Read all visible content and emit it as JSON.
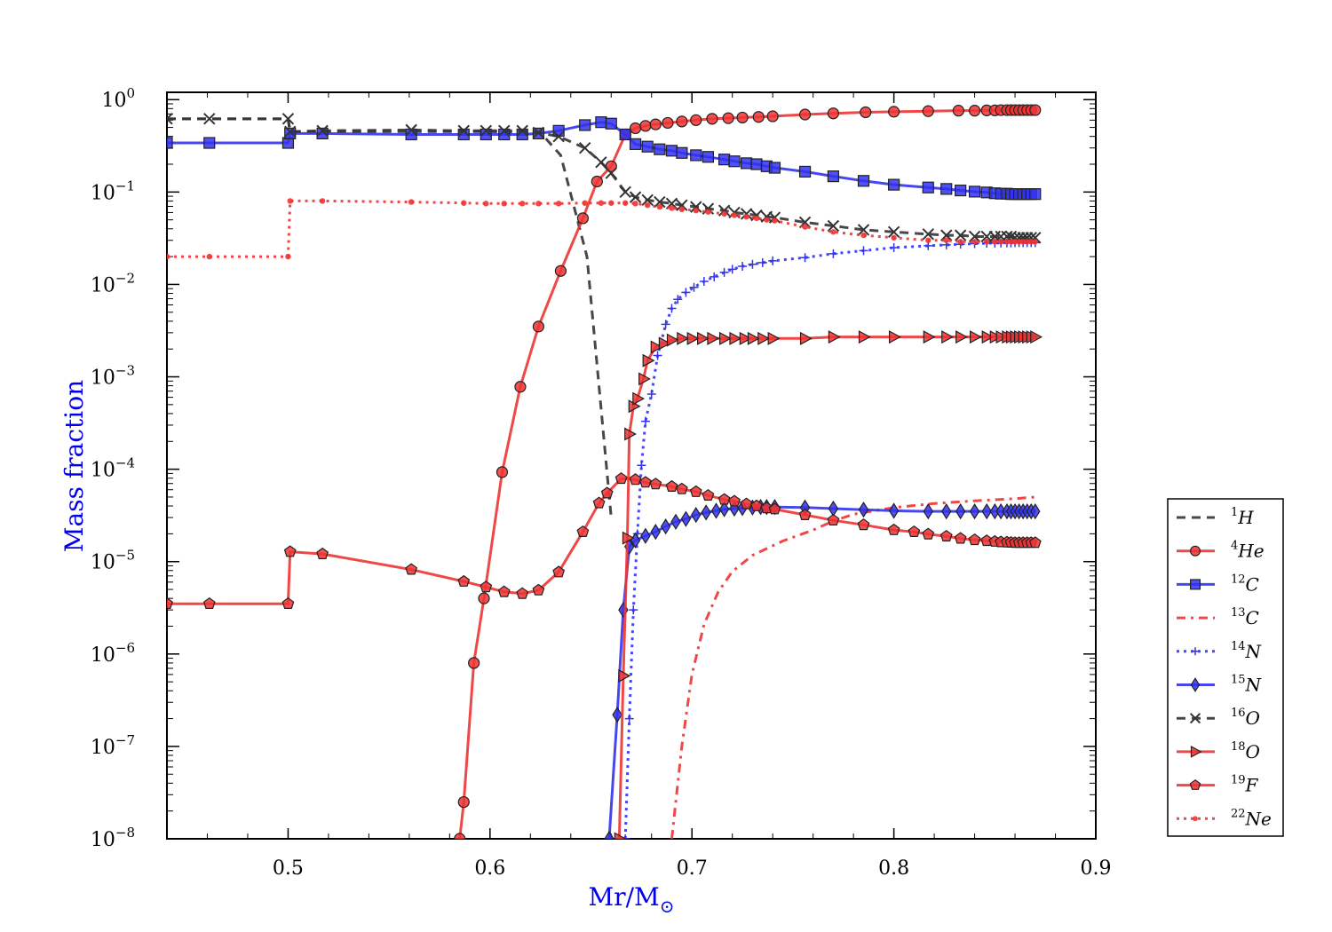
{
  "chart_data": {
    "type": "line",
    "xlabel": "Mr/M",
    "xlabel_sub": "⊙",
    "ylabel": "Mass fraction",
    "xlim": [
      0.44,
      0.9
    ],
    "ylim": [
      1e-08,
      1.2
    ],
    "yscale": "log",
    "xticks": [
      {
        "value": 0.5,
        "label": "0.5"
      },
      {
        "value": 0.6,
        "label": "0.6"
      },
      {
        "value": 0.7,
        "label": "0.7"
      },
      {
        "value": 0.8,
        "label": "0.8"
      },
      {
        "value": 0.9,
        "label": "0.9"
      }
    ],
    "yticks": [
      {
        "value": 1,
        "base": "10",
        "exp": "0"
      },
      {
        "value": 0.1,
        "base": "10",
        "exp": "−1"
      },
      {
        "value": 0.01,
        "base": "10",
        "exp": "−2"
      },
      {
        "value": 0.001,
        "base": "10",
        "exp": "−3"
      },
      {
        "value": 0.0001,
        "base": "10",
        "exp": "−4"
      },
      {
        "value": 1e-05,
        "base": "10",
        "exp": "−5"
      },
      {
        "value": 1e-06,
        "base": "10",
        "exp": "−6"
      },
      {
        "value": 1e-07,
        "base": "10",
        "exp": "−7"
      },
      {
        "value": 1e-08,
        "base": "10",
        "exp": "−8"
      }
    ],
    "legend_position": "right",
    "series": [
      {
        "name": "H",
        "sup": "1",
        "color": "#333333",
        "dash": "10,7",
        "marker": "none",
        "width": 3,
        "x": [
          0.44,
          0.5,
          0.501,
          0.52,
          0.56,
          0.6,
          0.625,
          0.635,
          0.648,
          0.66
        ],
        "y": [
          0.62,
          0.62,
          0.45,
          0.45,
          0.45,
          0.45,
          0.44,
          0.25,
          0.02,
          3e-05
        ]
      },
      {
        "name": "He",
        "sup": "4",
        "color": "#ee3333",
        "dash": "",
        "marker": "circle",
        "width": 3,
        "x": [
          0.585,
          0.587,
          0.592,
          0.597,
          0.606,
          0.615,
          0.624,
          0.635,
          0.646,
          0.653,
          0.66,
          0.667,
          0.672,
          0.677,
          0.682,
          0.688,
          0.695,
          0.702,
          0.71,
          0.718,
          0.725,
          0.733,
          0.74,
          0.756,
          0.77,
          0.786,
          0.8,
          0.817,
          0.832,
          0.84,
          0.846,
          0.85,
          0.853,
          0.856,
          0.858,
          0.86,
          0.862,
          0.864,
          0.866,
          0.868,
          0.87
        ],
        "y": [
          1e-08,
          2.5e-08,
          8e-07,
          4e-06,
          9.3e-05,
          0.00078,
          0.0035,
          0.014,
          0.052,
          0.13,
          0.19,
          0.42,
          0.49,
          0.52,
          0.54,
          0.56,
          0.58,
          0.6,
          0.62,
          0.63,
          0.64,
          0.65,
          0.66,
          0.69,
          0.71,
          0.73,
          0.74,
          0.75,
          0.76,
          0.76,
          0.765,
          0.765,
          0.77,
          0.77,
          0.77,
          0.77,
          0.77,
          0.77,
          0.77,
          0.77,
          0.77
        ]
      },
      {
        "name": "C",
        "sup": "12",
        "color": "#3333ee",
        "dash": "",
        "marker": "square",
        "width": 3,
        "x": [
          0.44,
          0.461,
          0.5,
          0.501,
          0.517,
          0.561,
          0.587,
          0.598,
          0.607,
          0.616,
          0.624,
          0.634,
          0.647,
          0.655,
          0.66,
          0.667,
          0.672,
          0.678,
          0.684,
          0.69,
          0.695,
          0.702,
          0.708,
          0.716,
          0.721,
          0.727,
          0.732,
          0.737,
          0.741,
          0.756,
          0.77,
          0.785,
          0.8,
          0.817,
          0.826,
          0.833,
          0.84,
          0.846,
          0.85,
          0.853,
          0.856,
          0.858,
          0.86,
          0.862,
          0.864,
          0.866,
          0.868,
          0.87
        ],
        "y": [
          0.34,
          0.34,
          0.34,
          0.43,
          0.43,
          0.42,
          0.42,
          0.42,
          0.42,
          0.42,
          0.43,
          0.46,
          0.53,
          0.57,
          0.55,
          0.42,
          0.33,
          0.31,
          0.29,
          0.28,
          0.265,
          0.25,
          0.24,
          0.225,
          0.215,
          0.205,
          0.2,
          0.19,
          0.183,
          0.166,
          0.148,
          0.132,
          0.12,
          0.112,
          0.108,
          0.104,
          0.101,
          0.099,
          0.097,
          0.096,
          0.096,
          0.095,
          0.095,
          0.095,
          0.095,
          0.095,
          0.095,
          0.095
        ]
      },
      {
        "name": "C",
        "sup": "13",
        "color": "#ee3333",
        "dash": "10,6,3,6",
        "marker": "none",
        "width": 3,
        "x": [
          0.69,
          0.695,
          0.7,
          0.706,
          0.713,
          0.72,
          0.73,
          0.745,
          0.76,
          0.77,
          0.78,
          0.8,
          0.82,
          0.84,
          0.86,
          0.87
        ],
        "y": [
          1e-08,
          1e-07,
          6e-07,
          2.1e-06,
          4.7e-06,
          7.8e-06,
          1.17e-05,
          1.67e-05,
          2.2e-05,
          2.75e-05,
          3.25e-05,
          3.85e-05,
          4.25e-05,
          4.55e-05,
          4.8e-05,
          5e-05
        ]
      },
      {
        "name": "N",
        "sup": "14",
        "color": "#3333ee",
        "dash": "3,5",
        "marker": "plus",
        "width": 3,
        "x": [
          0.667,
          0.669,
          0.671,
          0.673,
          0.675,
          0.677,
          0.68,
          0.683,
          0.687,
          0.69,
          0.693,
          0.697,
          0.701,
          0.706,
          0.711,
          0.716,
          0.72,
          0.725,
          0.73,
          0.735,
          0.74,
          0.756,
          0.77,
          0.785,
          0.8,
          0.817,
          0.826,
          0.833,
          0.84,
          0.846,
          0.85,
          0.853,
          0.856,
          0.858,
          0.86,
          0.862,
          0.864,
          0.866,
          0.868,
          0.87
        ],
        "y": [
          1e-08,
          2e-07,
          3e-06,
          2e-05,
          0.00011,
          0.00033,
          0.00065,
          0.0017,
          0.0037,
          0.0055,
          0.0069,
          0.0082,
          0.0093,
          0.0108,
          0.0121,
          0.0135,
          0.0146,
          0.0157,
          0.0165,
          0.0172,
          0.018,
          0.0195,
          0.0215,
          0.0232,
          0.025,
          0.0262,
          0.0268,
          0.0272,
          0.0276,
          0.0279,
          0.028,
          0.0281,
          0.0282,
          0.0282,
          0.0283,
          0.0283,
          0.0283,
          0.0283,
          0.0283,
          0.0283
        ]
      },
      {
        "name": "N",
        "sup": "15",
        "color": "#3333ee",
        "dash": "",
        "marker": "diamond",
        "width": 3,
        "x": [
          0.659,
          0.663,
          0.666,
          0.669,
          0.672,
          0.677,
          0.682,
          0.687,
          0.692,
          0.697,
          0.702,
          0.707,
          0.712,
          0.716,
          0.721,
          0.725,
          0.73,
          0.734,
          0.737,
          0.741,
          0.756,
          0.77,
          0.785,
          0.8,
          0.817,
          0.826,
          0.833,
          0.84,
          0.846,
          0.85,
          0.853,
          0.856,
          0.858,
          0.86,
          0.862,
          0.864,
          0.866,
          0.868,
          0.87
        ],
        "y": [
          1e-08,
          2.2e-07,
          3e-06,
          1.45e-05,
          1.7e-05,
          1.9e-05,
          2.1e-05,
          2.4e-05,
          2.7e-05,
          2.9e-05,
          3.2e-05,
          3.4e-05,
          3.55e-05,
          3.7e-05,
          3.75e-05,
          3.8e-05,
          3.85e-05,
          3.9e-05,
          3.9e-05,
          3.9e-05,
          3.85e-05,
          3.75e-05,
          3.65e-05,
          3.55e-05,
          3.5e-05,
          3.5e-05,
          3.5e-05,
          3.5e-05,
          3.5e-05,
          3.5e-05,
          3.5e-05,
          3.5e-05,
          3.5e-05,
          3.5e-05,
          3.5e-05,
          3.5e-05,
          3.5e-05,
          3.5e-05,
          3.5e-05
        ]
      },
      {
        "name": "O",
        "sup": "16",
        "color": "#333333",
        "dash": "10,7",
        "marker": "x",
        "width": 3,
        "x": [
          0.44,
          0.461,
          0.5,
          0.501,
          0.517,
          0.561,
          0.587,
          0.598,
          0.607,
          0.616,
          0.624,
          0.634,
          0.647,
          0.655,
          0.66,
          0.667,
          0.672,
          0.678,
          0.684,
          0.69,
          0.695,
          0.702,
          0.708,
          0.716,
          0.721,
          0.727,
          0.732,
          0.737,
          0.741,
          0.756,
          0.77,
          0.785,
          0.8,
          0.817,
          0.826,
          0.833,
          0.84,
          0.846,
          0.85,
          0.853,
          0.856,
          0.858,
          0.86,
          0.862,
          0.864,
          0.866,
          0.868,
          0.87
        ],
        "y": [
          0.62,
          0.62,
          0.62,
          0.45,
          0.46,
          0.47,
          0.46,
          0.46,
          0.46,
          0.46,
          0.44,
          0.4,
          0.3,
          0.21,
          0.16,
          0.1,
          0.088,
          0.082,
          0.078,
          0.075,
          0.072,
          0.069,
          0.066,
          0.063,
          0.06,
          0.058,
          0.056,
          0.054,
          0.053,
          0.047,
          0.043,
          0.039,
          0.037,
          0.035,
          0.034,
          0.034,
          0.033,
          0.033,
          0.033,
          0.033,
          0.033,
          0.033,
          0.032,
          0.032,
          0.032,
          0.032,
          0.032,
          0.032
        ]
      },
      {
        "name": "O",
        "sup": "18",
        "color": "#ee3333",
        "dash": "",
        "marker": "triangle",
        "width": 3,
        "x": [
          0.664,
          0.666,
          0.668,
          0.669,
          0.671,
          0.673,
          0.676,
          0.678,
          0.682,
          0.686,
          0.69,
          0.695,
          0.7,
          0.705,
          0.71,
          0.716,
          0.721,
          0.726,
          0.73,
          0.735,
          0.74,
          0.756,
          0.77,
          0.785,
          0.8,
          0.817,
          0.826,
          0.833,
          0.84,
          0.846,
          0.85,
          0.853,
          0.856,
          0.858,
          0.86,
          0.862,
          0.864,
          0.866,
          0.868,
          0.87
        ],
        "y": [
          1e-08,
          5.8e-07,
          1.8e-05,
          0.00024,
          0.00048,
          0.00058,
          0.00095,
          0.0015,
          0.0021,
          0.0023,
          0.0025,
          0.0026,
          0.0026,
          0.0026,
          0.0026,
          0.0026,
          0.0026,
          0.0026,
          0.0026,
          0.0026,
          0.0026,
          0.0026,
          0.0027,
          0.0027,
          0.0027,
          0.0027,
          0.0027,
          0.0027,
          0.0027,
          0.0027,
          0.0027,
          0.0027,
          0.0027,
          0.0027,
          0.0027,
          0.0027,
          0.0027,
          0.0027,
          0.0027,
          0.0027
        ]
      },
      {
        "name": "F",
        "sup": "19",
        "color": "#ee3333",
        "dash": "",
        "marker": "pentagon",
        "width": 3,
        "x": [
          0.44,
          0.461,
          0.5,
          0.501,
          0.517,
          0.561,
          0.587,
          0.598,
          0.607,
          0.616,
          0.624,
          0.634,
          0.646,
          0.654,
          0.658,
          0.665,
          0.672,
          0.677,
          0.682,
          0.69,
          0.695,
          0.702,
          0.708,
          0.716,
          0.721,
          0.727,
          0.732,
          0.737,
          0.741,
          0.756,
          0.77,
          0.785,
          0.8,
          0.81,
          0.817,
          0.826,
          0.833,
          0.84,
          0.846,
          0.85,
          0.853,
          0.856,
          0.858,
          0.86,
          0.862,
          0.864,
          0.866,
          0.868,
          0.87
        ],
        "y": [
          3.5e-06,
          3.5e-06,
          3.5e-06,
          1.28e-05,
          1.21e-05,
          8.2e-06,
          6.1e-06,
          5.3e-06,
          4.7e-06,
          4.5e-06,
          4.9e-06,
          7.7e-06,
          2.1e-05,
          4.3e-05,
          5.5e-05,
          7.9e-05,
          7.7e-05,
          7.2e-05,
          6.9e-05,
          6.5e-05,
          6.1e-05,
          5.7e-05,
          5.2e-05,
          4.7e-05,
          4.5e-05,
          4.2e-05,
          4e-05,
          3.8e-05,
          3.7e-05,
          3.2e-05,
          2.8e-05,
          2.5e-05,
          2.2e-05,
          2.1e-05,
          1.98e-05,
          1.88e-05,
          1.78e-05,
          1.72e-05,
          1.68e-05,
          1.65e-05,
          1.63e-05,
          1.62e-05,
          1.61e-05,
          1.6e-05,
          1.6e-05,
          1.6e-05,
          1.6e-05,
          1.6e-05,
          1.6e-05
        ]
      },
      {
        "name": "Ne",
        "sup": "22",
        "color": "#ee3333",
        "dash": "3,5",
        "marker": "dot",
        "width": 3,
        "x": [
          0.44,
          0.461,
          0.5,
          0.501,
          0.517,
          0.561,
          0.587,
          0.598,
          0.607,
          0.616,
          0.624,
          0.634,
          0.647,
          0.655,
          0.66,
          0.667,
          0.672,
          0.678,
          0.684,
          0.69,
          0.695,
          0.702,
          0.708,
          0.716,
          0.721,
          0.727,
          0.732,
          0.737,
          0.741,
          0.756,
          0.77,
          0.785,
          0.8,
          0.817,
          0.826,
          0.833,
          0.84,
          0.846,
          0.85,
          0.853,
          0.856,
          0.858,
          0.86,
          0.862,
          0.864,
          0.866,
          0.868,
          0.87
        ],
        "y": [
          0.02,
          0.02,
          0.02,
          0.08,
          0.08,
          0.078,
          0.076,
          0.075,
          0.075,
          0.075,
          0.075,
          0.075,
          0.076,
          0.076,
          0.076,
          0.076,
          0.075,
          0.072,
          0.069,
          0.067,
          0.065,
          0.063,
          0.061,
          0.058,
          0.056,
          0.054,
          0.052,
          0.05,
          0.049,
          0.042,
          0.037,
          0.034,
          0.032,
          0.03,
          0.03,
          0.029,
          0.029,
          0.029,
          0.029,
          0.029,
          0.029,
          0.029,
          0.029,
          0.029,
          0.029,
          0.029,
          0.029,
          0.029
        ]
      }
    ]
  }
}
